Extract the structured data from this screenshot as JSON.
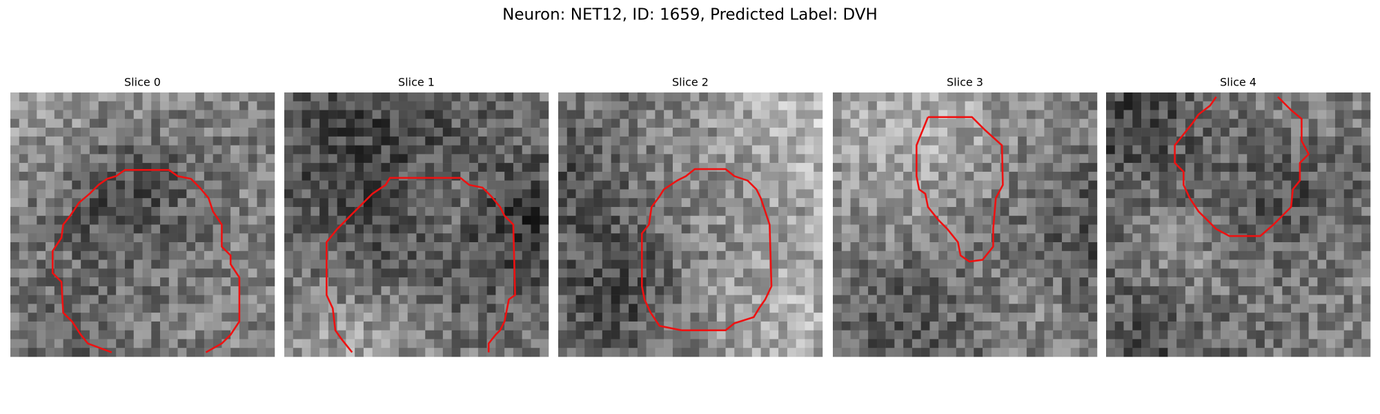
{
  "title": "Neuron: NET12, ID: 1659, Predicted Label: DVH",
  "panels": [
    {
      "title": "Slice 0"
    },
    {
      "title": "Slice 1"
    },
    {
      "title": "Slice 2"
    },
    {
      "title": "Slice 3"
    },
    {
      "title": "Slice 4"
    }
  ]
}
